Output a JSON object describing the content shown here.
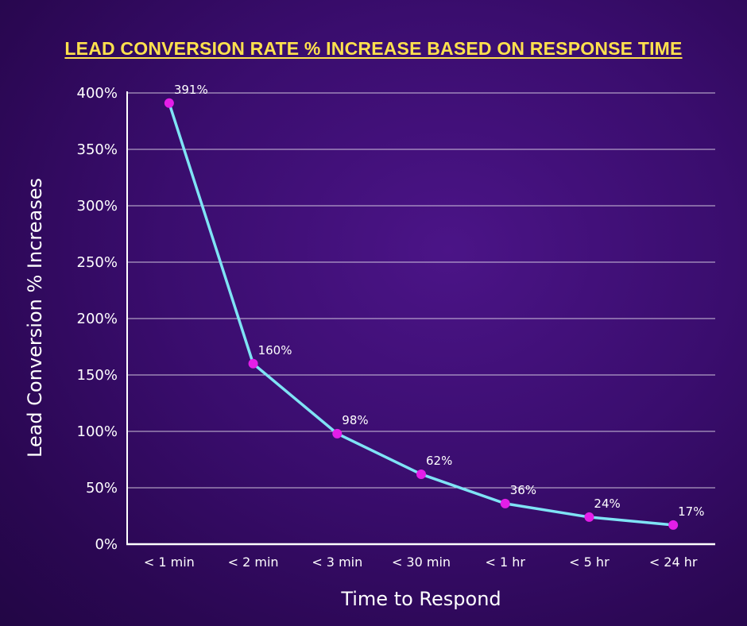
{
  "chart_data": {
    "type": "line",
    "title": "LEAD CONVERSION RATE % INCREASE BASED ON RESPONSE TIME",
    "xlabel": "Time to Respond",
    "ylabel": "Lead Conversion % Increases",
    "categories": [
      "< 1 min",
      "< 2 min",
      "< 3 min",
      "< 30 min",
      "< 1 hr",
      "< 5 hr",
      "< 24 hr"
    ],
    "series": [
      {
        "values": [
          391,
          160,
          98,
          62,
          36,
          24,
          17
        ],
        "data_labels": [
          "391%",
          "160%",
          "98%",
          "62%",
          "36%",
          "24%",
          "17%"
        ]
      }
    ],
    "y_ticks": [
      {
        "value": 0,
        "label": "0%"
      },
      {
        "value": 50,
        "label": "50%"
      },
      {
        "value": 100,
        "label": "100%"
      },
      {
        "value": 150,
        "label": "150%"
      },
      {
        "value": 200,
        "label": "200%"
      },
      {
        "value": 250,
        "label": "250%"
      },
      {
        "value": 300,
        "label": "300%"
      },
      {
        "value": 350,
        "label": "350%"
      },
      {
        "value": 400,
        "label": "400%"
      }
    ],
    "ylim": [
      0,
      400
    ],
    "grid": true,
    "line_color": "#7fe3f5",
    "marker_color": "#e41ee8",
    "title_color": "#ffe14d"
  }
}
